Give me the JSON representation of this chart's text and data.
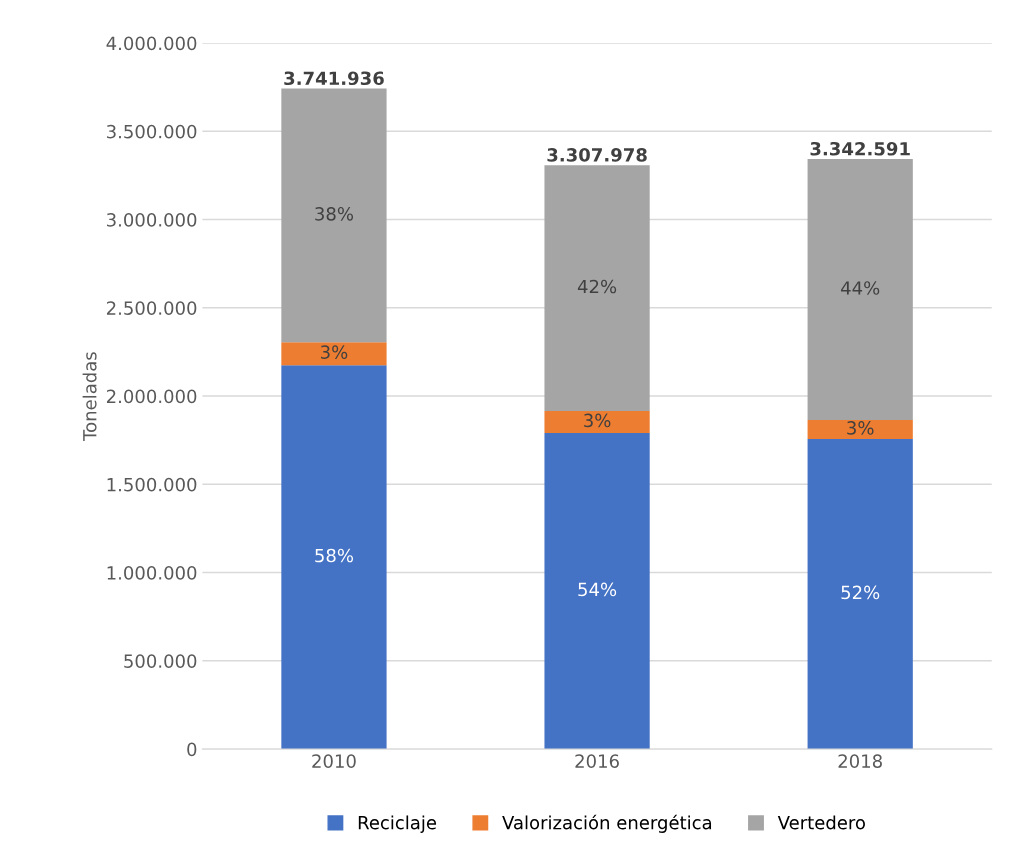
{
  "chart_data": {
    "type": "bar",
    "stacked": true,
    "ylabel": "Toneladas",
    "categories": [
      "2010",
      "2016",
      "2018"
    ],
    "series": [
      {
        "name": "Reciclaje",
        "color": "#4472c4",
        "values": [
          2175000,
          1791000,
          1757000
        ]
      },
      {
        "name": "Valorización energética",
        "color": "#ed7d31",
        "values": [
          130000,
          124000,
          107000
        ]
      },
      {
        "name": "Vertedero",
        "color": "#a5a5a5",
        "values": [
          1436936,
          1392978,
          1478591
        ]
      }
    ],
    "annotations": [
      "58%",
      "54%",
      "52%",
      "3%",
      "3%",
      "3%",
      "38%",
      "42%",
      "44%"
    ],
    "totals": [
      "3.741.936",
      "3.307.978",
      "3.342.591"
    ],
    "ylim": [
      0,
      4000000
    ],
    "yticks": [
      0,
      {
        "value": 500000,
        "label": "500.000"
      },
      {
        "value": 1000000,
        "label": "1.000.000"
      },
      {
        "value": 1500000,
        "label": "1.500.000"
      },
      {
        "value": 2000000,
        "label": "2.000.000"
      },
      {
        "value": 2500000,
        "label": "2.500.000"
      },
      {
        "value": 3000000,
        "label": "3.000.000"
      },
      {
        "value": 3500000,
        "label": "3.500.000"
      },
      {
        "value": 4000000,
        "label": "4.000.000"
      }
    ],
    "grid": "y",
    "legend": "bottom"
  }
}
